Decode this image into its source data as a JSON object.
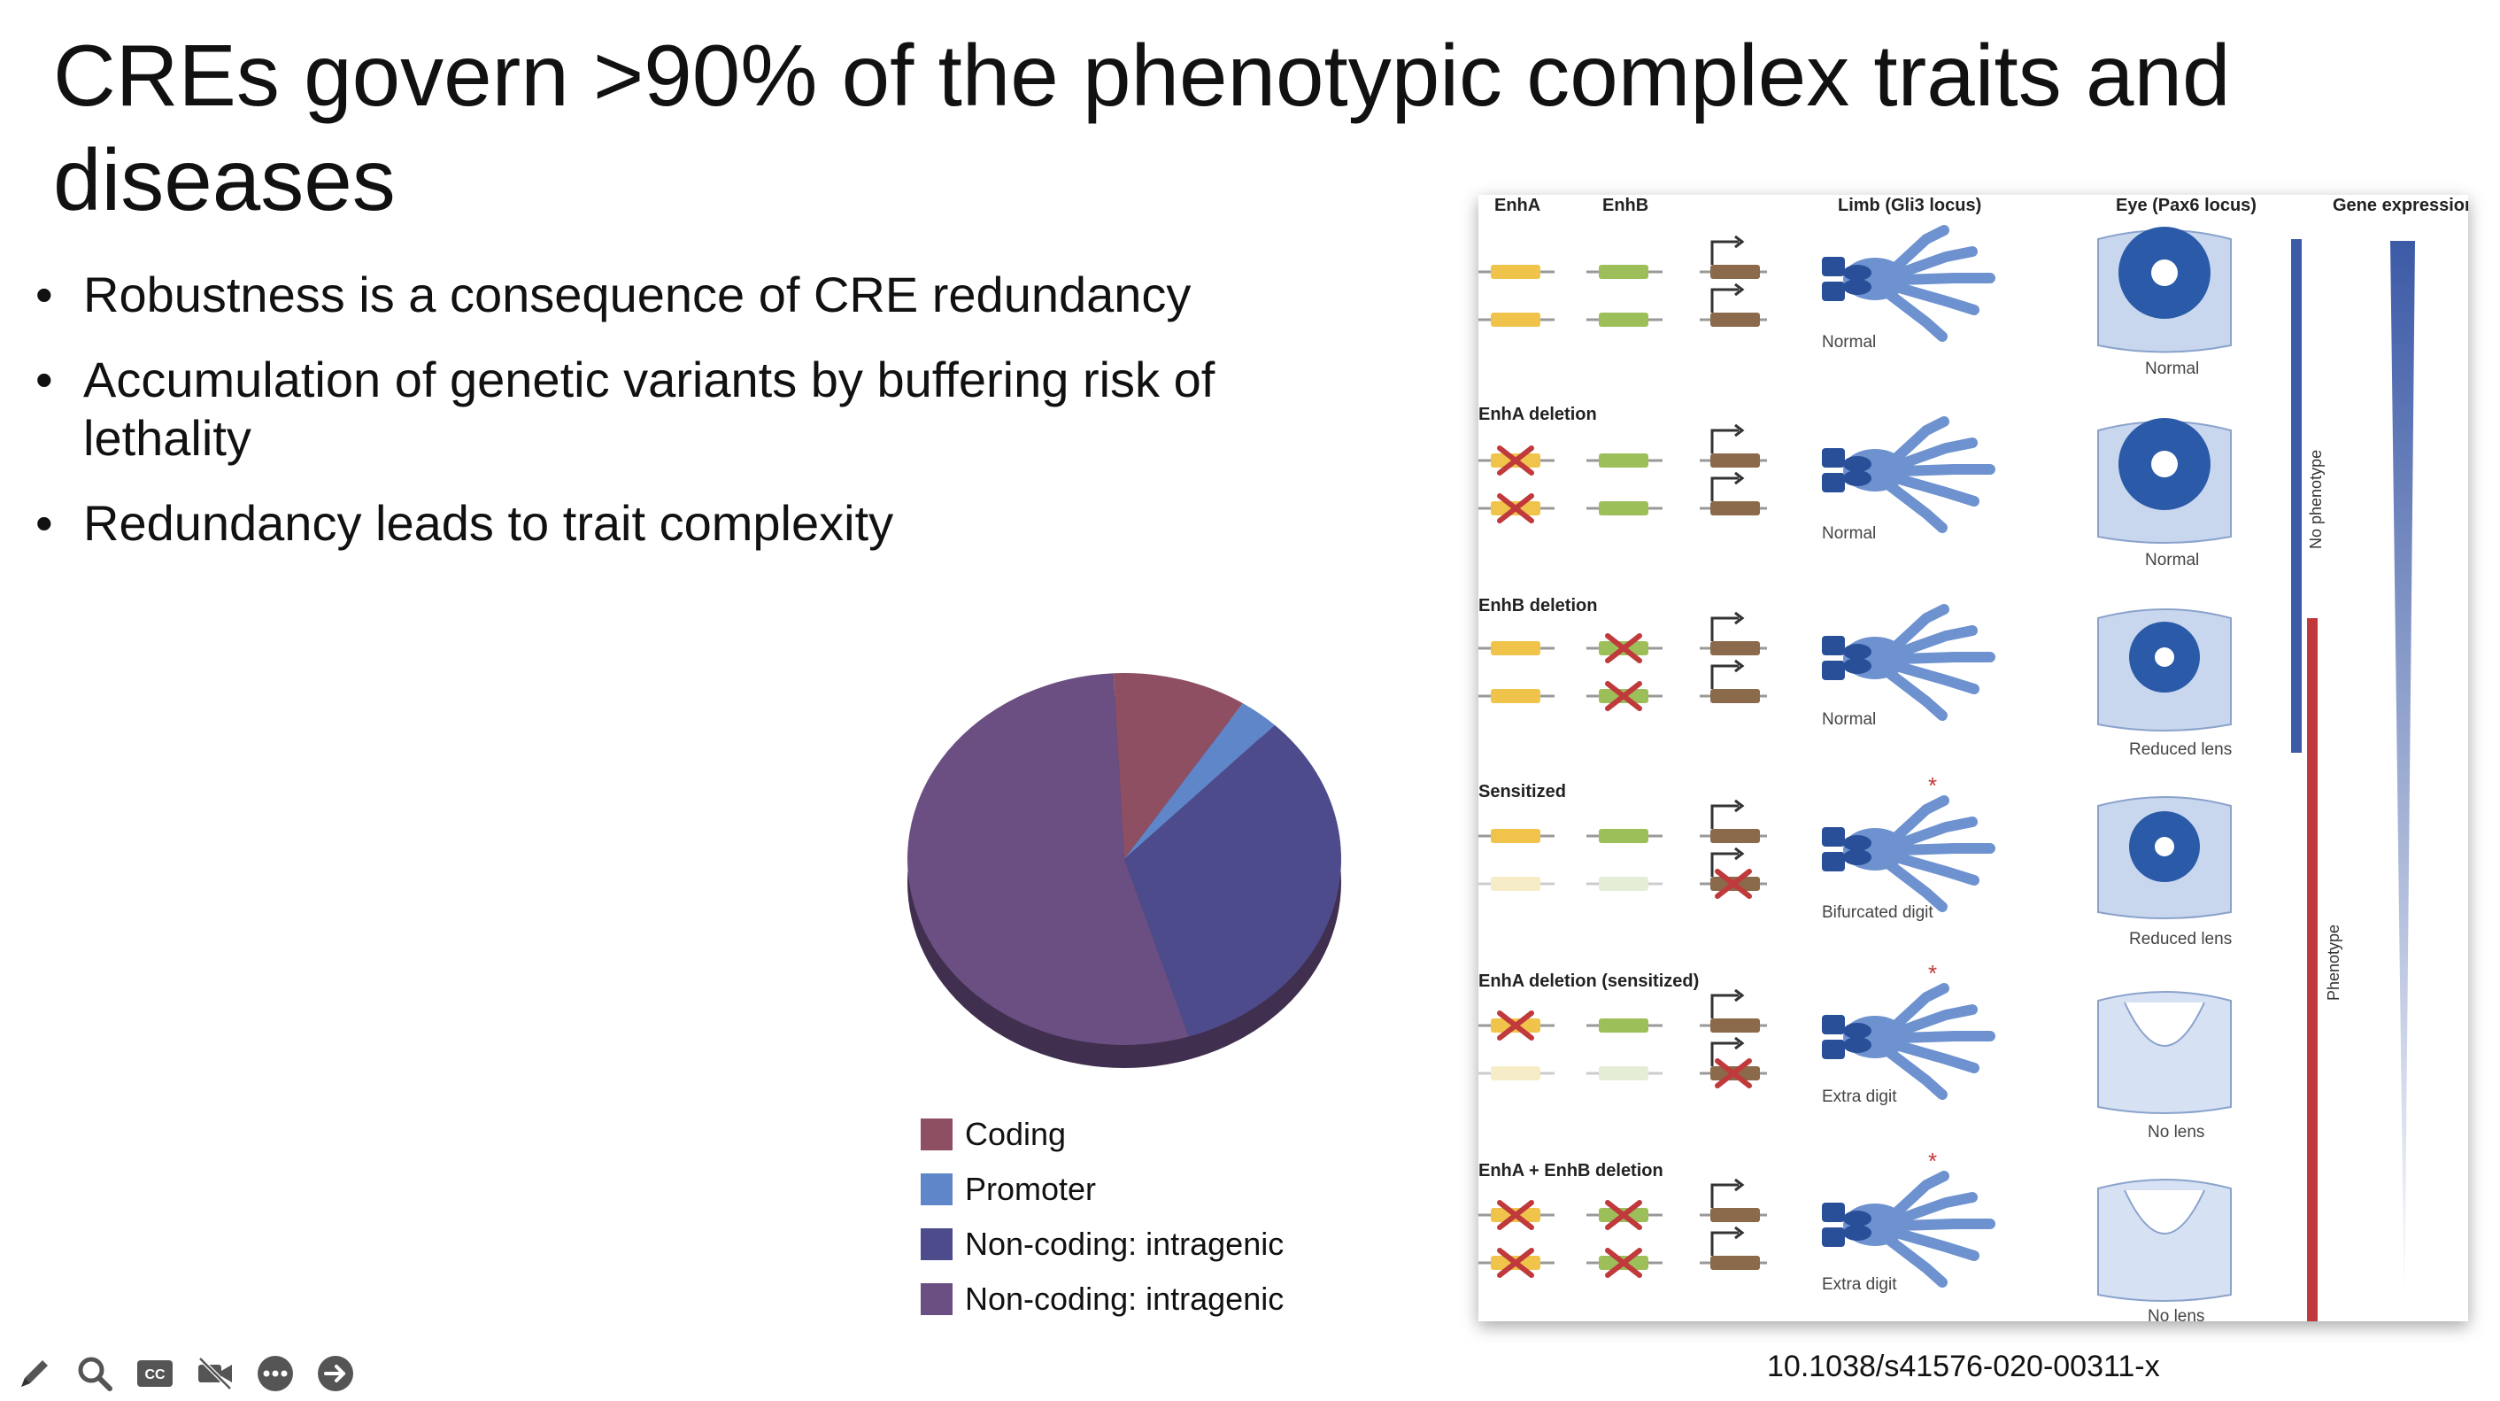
{
  "slide": {
    "title": "CREs govern >90% of the phenotypic complex traits and diseases",
    "bullets": [
      "Robustness is a consequence of CRE redundancy",
      "Accumulation of genetic variants by buffering risk of lethality",
      "Redundancy leads to trait complexity"
    ],
    "citation": "10.1038/s41576-020-00311-x"
  },
  "chart_data": {
    "type": "pie",
    "slices": [
      {
        "label": "Coding",
        "value": 10,
        "color": "#8e4f63"
      },
      {
        "label": "Promoter",
        "value": 3,
        "color": "#5f86c9"
      },
      {
        "label": "Non-coding: intragenic",
        "value": 33,
        "color": "#4d4b8c"
      },
      {
        "label": "Non-coding: intragenic",
        "value": 54,
        "color": "#6b4f82"
      }
    ]
  },
  "figure": {
    "headers": {
      "enha": "EnhA",
      "enhb": "EnhB",
      "limb": "Limb (Gli3 locus)",
      "eye": "Eye (Pax6 locus)",
      "expression": "Gene expression"
    },
    "rows": [
      {
        "label": "",
        "limb": "Normal",
        "eye": "Normal"
      },
      {
        "label": "EnhA deletion",
        "limb": "Normal",
        "eye": "Normal"
      },
      {
        "label": "EnhB deletion",
        "limb": "Normal",
        "eye": "Reduced lens"
      },
      {
        "label": "Sensitized",
        "limb": "Bifurcated digit",
        "eye": "Reduced lens"
      },
      {
        "label": "EnhA deletion (sensitized)",
        "limb": "Extra digit",
        "eye": "No lens"
      },
      {
        "label": "EnhA + EnhB deletion",
        "limb": "Extra digit",
        "eye": "No lens"
      }
    ],
    "side_labels": {
      "no_phenotype": "No phenotype",
      "phenotype": "Phenotype"
    }
  },
  "toolbar": {
    "icons": [
      "pen-icon",
      "search-icon",
      "cc-icon",
      "video-off-icon",
      "more-icon",
      "next-icon"
    ]
  }
}
